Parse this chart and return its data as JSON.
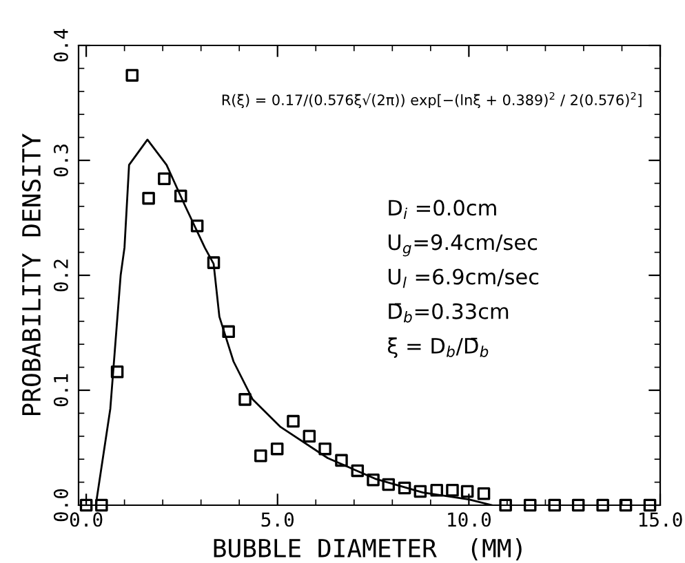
{
  "chart_data": {
    "type": "scatter",
    "xlabel": "BUBBLE DIAMETER  (MM)",
    "ylabel": "PROBABILITY DENSITY",
    "xlim": [
      -0.2,
      15
    ],
    "ylim": [
      0,
      0.4
    ],
    "xticks": [
      {
        "value": 0,
        "label": "0.0"
      },
      {
        "value": 5,
        "label": "5.0"
      },
      {
        "value": 10,
        "label": "10.0"
      },
      {
        "value": 15,
        "label": "15.0"
      }
    ],
    "yticks": [
      {
        "value": 0,
        "label": "0.0"
      },
      {
        "value": 0.1,
        "label": "0.1"
      },
      {
        "value": 0.2,
        "label": "0.2"
      },
      {
        "value": 0.3,
        "label": "0.3"
      },
      {
        "value": 0.4,
        "label": "0.4"
      }
    ],
    "grid": false,
    "legend": false,
    "series": [
      {
        "marker": "square",
        "color": "#000000",
        "x": [
          0.0,
          0.4,
          0.81,
          1.2,
          1.63,
          2.04,
          2.47,
          2.9,
          3.33,
          3.72,
          4.15,
          4.56,
          4.99,
          5.41,
          5.83,
          6.24,
          6.67,
          7.09,
          7.5,
          7.9,
          8.32,
          8.73,
          9.16,
          9.57,
          9.96,
          10.39,
          10.96,
          11.6,
          12.24,
          12.86,
          13.5,
          14.1,
          14.73
        ],
        "values": [
          0.0,
          0.0,
          0.116,
          0.374,
          0.267,
          0.284,
          0.269,
          0.243,
          0.211,
          0.151,
          0.092,
          0.043,
          0.049,
          0.073,
          0.06,
          0.049,
          0.039,
          0.03,
          0.022,
          0.018,
          0.015,
          0.012,
          0.013,
          0.013,
          0.012,
          0.01,
          0.0,
          0.0,
          0.0,
          0.0,
          0.0,
          0.0,
          0.0
        ]
      },
      {
        "type": "line",
        "marker": "none",
        "line_style": "solid",
        "color": "#000000",
        "x": [
          0.25,
          0.63,
          0.9,
          1.0,
          1.12,
          1.6,
          2.1,
          2.59,
          3.1,
          3.33,
          3.48,
          3.85,
          4.35,
          5.08,
          6.31,
          7.55,
          8.8,
          10.0,
          10.6
        ],
        "values": [
          0.0,
          0.084,
          0.2,
          0.224,
          0.296,
          0.318,
          0.296,
          0.26,
          0.224,
          0.21,
          0.164,
          0.125,
          0.092,
          0.068,
          0.041,
          0.023,
          0.011,
          0.005,
          0.0
        ]
      }
    ],
    "annotations": [
      "R(ξ) = 0.17/(0.576ξ√(2π)) exp[−(lnξ + 0.389)$^{2}$ / 2(0.576)$^{2}$]",
      "D$_{i}$ =0.0cm",
      "U$_{g}$=9.4cm/sec",
      "U$_{l}$ =6.9cm/sec",
      "D̄$_{b}$=0.33cm",
      "ξ = D$_{b}$/D̄$_{b}$"
    ]
  }
}
